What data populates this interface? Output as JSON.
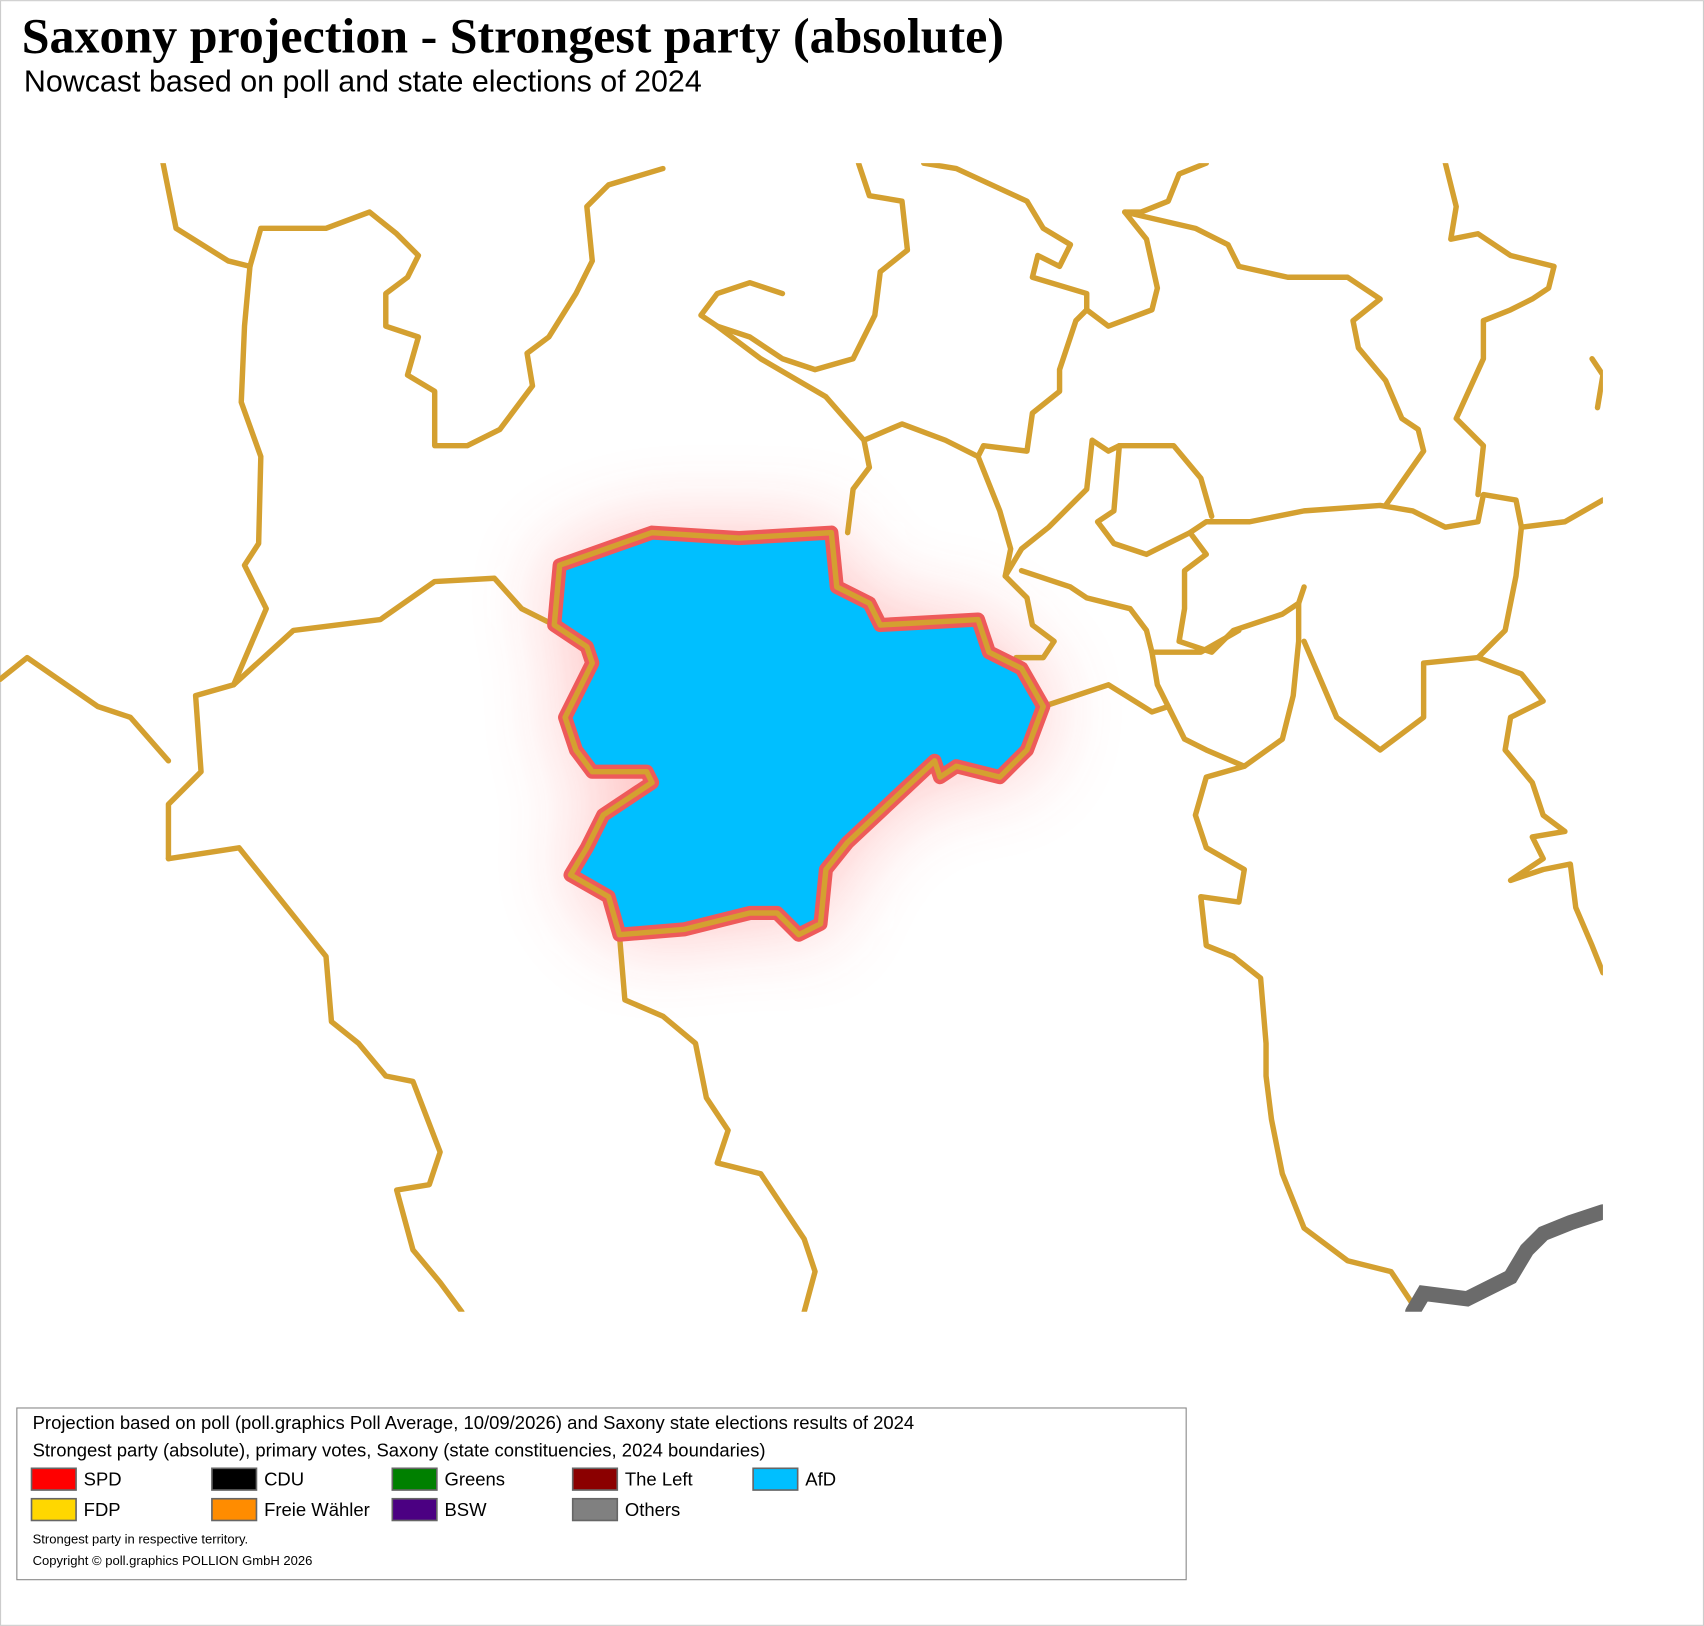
{
  "header": {
    "title": "Saxony projection - Strongest party (absolute)",
    "subtitle": "Nowcast based on poll and state elections of 2024"
  },
  "legend": {
    "lines": [
      "Projection based on poll (poll.graphics Poll Average, 10/09/2026) and Saxony state elections results of 2024",
      "Strongest party (absolute), primary votes, Saxony (state constituencies, 2024 boundaries)"
    ],
    "items": [
      {
        "name": "SPD",
        "color": "#ff0000"
      },
      {
        "name": "CDU",
        "color": "#000000"
      },
      {
        "name": "Greens",
        "color": "#008000"
      },
      {
        "name": "The Left",
        "color": "#8b0000"
      },
      {
        "name": "AfD",
        "color": "#00bfff"
      },
      {
        "name": "FDP",
        "color": "#ffd700"
      },
      {
        "name": "Freie Wähler",
        "color": "#ff8c00"
      },
      {
        "name": "BSW",
        "color": "#4b0082"
      },
      {
        "name": "Others",
        "color": "#808080"
      }
    ],
    "notes": [
      "Strongest party in respective territory.",
      "Copyright © poll.graphics POLLION GmbH 2026"
    ]
  }
}
